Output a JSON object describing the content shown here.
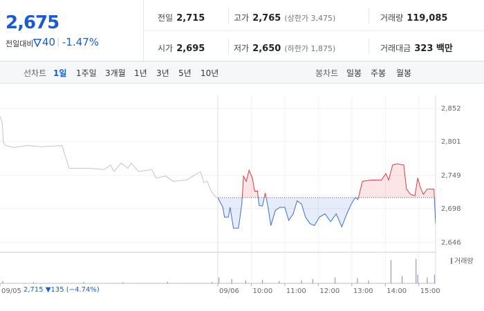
{
  "header": {
    "price": "2,675",
    "change_label": "전일대비",
    "change": "40",
    "change_pct": "-1.47%"
  },
  "stats": [
    {
      "label": "전일",
      "value": "2,715"
    },
    {
      "label": "고가",
      "value": "2,765",
      "extra": "(상한가 3,475)"
    },
    {
      "label": "거래량",
      "value": "119,085"
    },
    {
      "label": "시가",
      "value": "2,695"
    },
    {
      "label": "저가",
      "value": "2,650",
      "extra": "(하한가 1,875)"
    },
    {
      "label": "거래대금",
      "value": "323 백만"
    }
  ],
  "toolbar": {
    "line_label": "선차트",
    "line_tabs": [
      "1일",
      "1주일",
      "3개월",
      "1년",
      "3년",
      "5년",
      "10년"
    ],
    "candle_label": "봉차트",
    "candle_tabs": [
      "일봉",
      "주봉",
      "월봉"
    ]
  },
  "footnote": {
    "close": "2,715",
    "change": "▼135 (−4.74%)"
  },
  "chart_data": {
    "type": "line",
    "baseline": 2715,
    "xlim": [
      0,
      780
    ],
    "xticks": [
      {
        "value": 0,
        "label": "09/05"
      },
      {
        "value": 390,
        "label": "09/06"
      },
      {
        "value": 450,
        "label": "10:00"
      },
      {
        "value": 510,
        "label": "11:00"
      },
      {
        "value": 570,
        "label": "12:00"
      },
      {
        "value": 630,
        "label": "13:00"
      },
      {
        "value": 690,
        "label": "14:00"
      },
      {
        "value": 750,
        "label": "15:00"
      }
    ],
    "ylim": [
      2631,
      2872
    ],
    "yticks": [
      {
        "value": 2852,
        "label": "2,852"
      },
      {
        "value": 2801,
        "label": "2,801"
      },
      {
        "value": 2749,
        "label": "2,749"
      },
      {
        "value": 2698,
        "label": "2,698"
      },
      {
        "value": 2646,
        "label": "2,646"
      }
    ],
    "grid": true,
    "series": [
      {
        "color": "#c4c4c4",
        "x": [
          0,
          4,
          6,
          10,
          25,
          50,
          74,
          111,
          120,
          124,
          161,
          186,
          198,
          204,
          217,
          229,
          235,
          248,
          272,
          279,
          297,
          310,
          334,
          359,
          365,
          371,
          378,
          384,
          388
        ],
        "values": [
          2840,
          2830,
          2800,
          2795,
          2792,
          2795,
          2793,
          2795,
          2770,
          2760,
          2760,
          2758,
          2765,
          2755,
          2768,
          2760,
          2768,
          2755,
          2758,
          2745,
          2748,
          2740,
          2742,
          2755,
          2738,
          2740,
          2725,
          2718,
          2715
        ]
      },
      {
        "color": "#e0383e",
        "color_below": "#3a6fcf",
        "x": [
          390,
          399,
          402,
          409,
          412,
          418,
          427,
          433,
          436,
          441,
          446,
          452,
          456,
          461,
          464,
          470,
          475,
          480,
          485,
          493,
          501,
          510,
          517,
          525,
          532,
          540,
          547,
          555,
          563,
          572,
          582,
          592,
          602,
          612,
          621,
          629,
          636,
          641,
          649,
          664,
          683,
          691,
          696,
          703,
          711,
          723,
          728,
          735,
          743,
          748,
          753,
          758,
          765,
          773,
          777,
          780
        ],
        "values": [
          2715,
          2700,
          2685,
          2685,
          2700,
          2668,
          2668,
          2705,
          2748,
          2740,
          2757,
          2745,
          2725,
          2725,
          2703,
          2702,
          2722,
          2700,
          2672,
          2695,
          2700,
          2700,
          2680,
          2690,
          2710,
          2705,
          2685,
          2675,
          2672,
          2685,
          2690,
          2678,
          2690,
          2670,
          2690,
          2705,
          2715,
          2712,
          2740,
          2742,
          2742,
          2752,
          2742,
          2765,
          2767,
          2765,
          2728,
          2720,
          2718,
          2745,
          2730,
          2720,
          2728,
          2728,
          2728,
          2675
        ]
      }
    ],
    "volume": {
      "name": "거래량",
      "color": "#8e7cc3",
      "ylim": [
        0,
        100
      ],
      "x": [
        5,
        60,
        150,
        220,
        300,
        380,
        392,
        415,
        440,
        470,
        500,
        540,
        560,
        600,
        640,
        660,
        700,
        720,
        745,
        748,
        765,
        778
      ],
      "values": [
        8,
        4,
        5,
        4,
        6,
        5,
        20,
        15,
        10,
        12,
        8,
        10,
        15,
        20,
        18,
        10,
        80,
        25,
        85,
        30,
        20,
        30
      ]
    }
  }
}
